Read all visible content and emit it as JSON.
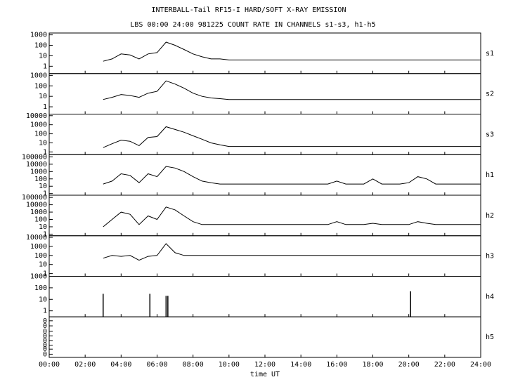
{
  "chart_data": {
    "type": "line",
    "title": "INTERBALL-Tail RF15-I HARD/SOFT X-RAY EMISSION",
    "subtitle": "LBS 00:00 24:00 981225  COUNT RATE IN CHANNELS s1-s3, h1-h5",
    "x_label": "time UT",
    "log_y": true,
    "color": "#000000",
    "xlim": [
      0,
      24
    ],
    "xticks": [
      {
        "value": 0,
        "label": "00:00"
      },
      {
        "value": 2,
        "label": "02:00"
      },
      {
        "value": 4,
        "label": "04:00"
      },
      {
        "value": 6,
        "label": "06:00"
      },
      {
        "value": 8,
        "label": "08:00"
      },
      {
        "value": 10,
        "label": "10:00"
      },
      {
        "value": 12,
        "label": "12:00"
      },
      {
        "value": 14,
        "label": "14:00"
      },
      {
        "value": 16,
        "label": "16:00"
      },
      {
        "value": 18,
        "label": "18:00"
      },
      {
        "value": 20,
        "label": "20:00"
      },
      {
        "value": 22,
        "label": "22:00"
      },
      {
        "value": 24,
        "label": "24:00"
      }
    ],
    "x": [
      3,
      3.5,
      4,
      4.5,
      5,
      5.5,
      6,
      6.5,
      7,
      7.5,
      8,
      8.5,
      9,
      9.5,
      10,
      10.5,
      11,
      11.5,
      12,
      12.5,
      13,
      13.5,
      14,
      14.5,
      15,
      15.5,
      16,
      16.5,
      17,
      17.5,
      18,
      18.5,
      19,
      19.5,
      20,
      20.5,
      21,
      21.5,
      22,
      22.5,
      23,
      23.5,
      24
    ],
    "panels": [
      {
        "name": "s1",
        "ylim": [
          0.2,
          1500
        ],
        "yticks": [
          1,
          10,
          100,
          1000
        ],
        "values": [
          3,
          5,
          15,
          12,
          5,
          15,
          20,
          200,
          100,
          40,
          15,
          8,
          5,
          5,
          4,
          4,
          4,
          4,
          4,
          4,
          4,
          4,
          4,
          4,
          4,
          4,
          4,
          4,
          4,
          4,
          4,
          4,
          4,
          4,
          4,
          4,
          4,
          4,
          4,
          4,
          4,
          4,
          4
        ]
      },
      {
        "name": "s2",
        "ylim": [
          0.2,
          1500
        ],
        "yticks": [
          1,
          10,
          100,
          1000
        ],
        "values": [
          5,
          8,
          15,
          12,
          8,
          20,
          30,
          300,
          150,
          60,
          20,
          10,
          7,
          6,
          5,
          5,
          5,
          5,
          5,
          5,
          5,
          5,
          5,
          5,
          5,
          5,
          5,
          5,
          5,
          5,
          5,
          5,
          5,
          5,
          5,
          5,
          5,
          5,
          5,
          5,
          5,
          5,
          5
        ]
      },
      {
        "name": "s3",
        "ylim": [
          0.5,
          15000
        ],
        "yticks": [
          1,
          10,
          100,
          1000,
          10000
        ],
        "values": [
          3,
          8,
          20,
          15,
          5,
          40,
          50,
          600,
          300,
          150,
          60,
          25,
          10,
          6,
          4,
          4,
          4,
          4,
          4,
          4,
          4,
          4,
          4,
          4,
          4,
          4,
          4,
          4,
          4,
          4,
          4,
          4,
          4,
          4,
          4,
          4,
          4,
          4,
          4,
          4,
          4,
          4,
          4
        ]
      },
      {
        "name": "h1",
        "ylim": [
          0.6,
          200000
        ],
        "yticks": [
          1,
          10,
          100,
          1000,
          10000,
          100000
        ],
        "values": [
          20,
          50,
          500,
          300,
          30,
          500,
          200,
          5000,
          3000,
          1000,
          200,
          50,
          30,
          20,
          20,
          20,
          20,
          20,
          20,
          20,
          20,
          20,
          20,
          20,
          20,
          20,
          50,
          20,
          20,
          20,
          100,
          20,
          20,
          20,
          30,
          200,
          100,
          20,
          20,
          20,
          20,
          20,
          20
        ]
      },
      {
        "name": "h2",
        "ylim": [
          0.6,
          200000
        ],
        "yticks": [
          1,
          10,
          100,
          1000,
          10000,
          100000
        ],
        "values": [
          10,
          100,
          1000,
          500,
          20,
          300,
          100,
          5000,
          2000,
          300,
          50,
          20,
          20,
          20,
          20,
          20,
          20,
          20,
          20,
          20,
          20,
          20,
          20,
          20,
          20,
          20,
          50,
          20,
          20,
          20,
          30,
          20,
          20,
          20,
          20,
          50,
          30,
          20,
          20,
          20,
          20,
          20,
          20
        ]
      },
      {
        "name": "h3",
        "ylim": [
          0.5,
          15000
        ],
        "yticks": [
          1,
          10,
          100,
          1000,
          10000
        ],
        "values": [
          50,
          100,
          80,
          100,
          30,
          80,
          100,
          2000,
          200,
          100,
          100,
          100,
          100,
          100,
          100,
          100,
          100,
          100,
          100,
          100,
          100,
          100,
          100,
          100,
          100,
          100,
          100,
          100,
          100,
          100,
          100,
          100,
          100,
          100,
          100,
          100,
          100,
          100,
          100,
          100,
          100,
          100,
          100
        ]
      },
      {
        "name": "h4",
        "ylim": [
          0.3,
          1000
        ],
        "yticks": [
          1,
          10,
          100,
          1000
        ],
        "marks": "spike",
        "x": [
          3,
          5.6,
          6.5,
          6.6,
          20.1
        ],
        "values": [
          30,
          30,
          20,
          20,
          50
        ]
      },
      {
        "name": "h5",
        "ylim": [
          0.05,
          0.5
        ],
        "yticks": [
          {
            "value": 0.06,
            "label": "0"
          },
          {
            "value": 0.08,
            "label": "0"
          },
          {
            "value": 0.1,
            "label": "0"
          },
          {
            "value": 0.13,
            "label": "0"
          },
          {
            "value": 0.17,
            "label": "0"
          },
          {
            "value": 0.22,
            "label": "0"
          },
          {
            "value": 0.3,
            "label": "0"
          },
          {
            "value": 0.4,
            "label": "0"
          }
        ]
      }
    ]
  }
}
